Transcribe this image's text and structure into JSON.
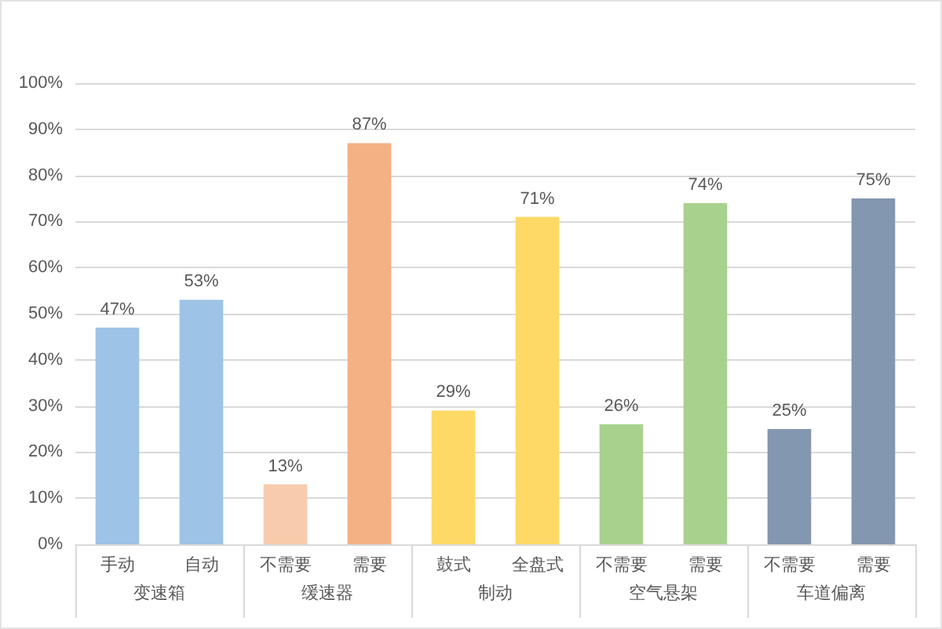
{
  "chart_data": {
    "type": "bar",
    "categories": [
      "手动",
      "自动",
      "不需要",
      "需要",
      "鼓式",
      "全盘式",
      "不需要",
      "需要",
      "不需要",
      "需要"
    ],
    "values": [
      47,
      53,
      13,
      87,
      29,
      71,
      26,
      74,
      25,
      75
    ],
    "colors": [
      "#9dc3e6",
      "#9dc3e6",
      "#f8cbad",
      "#f4b183",
      "#ffd966",
      "#ffd966",
      "#a9d18e",
      "#a9d18e",
      "#8497b0",
      "#8497b0"
    ],
    "value_labels": [
      "47%",
      "53%",
      "13%",
      "87%",
      "29%",
      "71%",
      "26%",
      "74%",
      "25%",
      "75%"
    ],
    "ylim": [
      0,
      100
    ],
    "yticks": [
      {
        "value": 0,
        "label": "0%"
      },
      {
        "value": 10,
        "label": "10%"
      },
      {
        "value": 20,
        "label": "20%"
      },
      {
        "value": 30,
        "label": "30%"
      },
      {
        "value": 40,
        "label": "40%"
      },
      {
        "value": 50,
        "label": "50%"
      },
      {
        "value": 60,
        "label": "60%"
      },
      {
        "value": 70,
        "label": "70%"
      },
      {
        "value": 80,
        "label": "80%"
      },
      {
        "value": 90,
        "label": "90%"
      },
      {
        "value": 100,
        "label": "100%"
      }
    ],
    "grid": "y",
    "annotations": [
      "变速箱",
      "缓速器",
      "制动",
      "空气悬架",
      "车道偏离"
    ]
  }
}
